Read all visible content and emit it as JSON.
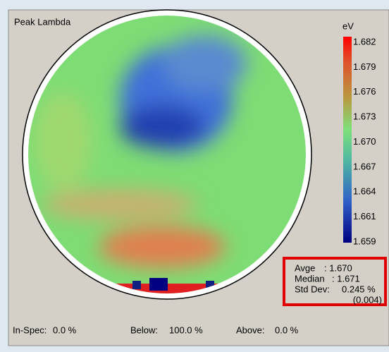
{
  "panel": {
    "title": "Peak Lambda"
  },
  "color_scale": {
    "unit": "eV",
    "labels": [
      "1.682",
      "1.679",
      "1.676",
      "1.673",
      "1.670",
      "1.667",
      "1.664",
      "1.661",
      "1.659"
    ]
  },
  "stats": {
    "rows": [
      [
        "Avge",
        ": 1.670"
      ],
      [
        "Median",
        ": 1.671"
      ],
      [
        "Std Dev:",
        "0.245 %"
      ]
    ],
    "extra": "(0.004)"
  },
  "footer": [
    [
      "In-Spec:",
      "0.0 %"
    ],
    [
      "Below:",
      "100.0 %"
    ],
    [
      "Above:",
      "0.0 %"
    ]
  ]
}
